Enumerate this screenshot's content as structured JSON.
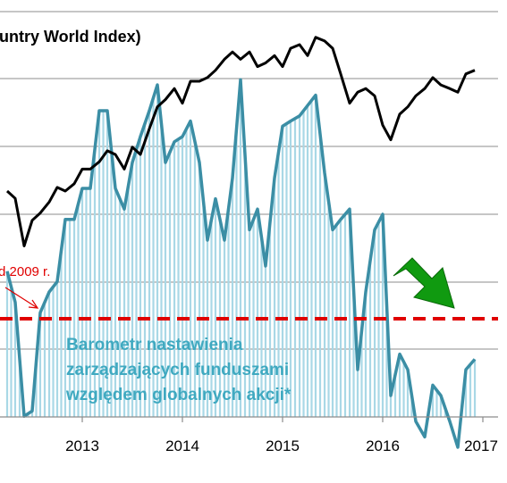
{
  "chart_data": {
    "type": "line",
    "title_fragment": "untry World Index)",
    "annotation": "d 2009 r.",
    "barometer_label_lines": [
      "Barometr nastawienia",
      "zarządzających  funduszami",
      "względem globalnych  akcji*"
    ],
    "x_ticks": [
      "2013",
      "2014",
      "2015",
      "2016",
      "2017"
    ],
    "index_series": {
      "t": [
        2012.25,
        2012.33,
        2012.42,
        2012.5,
        2012.58,
        2012.67,
        2012.75,
        2012.83,
        2012.92,
        2013.0,
        2013.08,
        2013.17,
        2013.25,
        2013.33,
        2013.42,
        2013.5,
        2013.58,
        2013.67,
        2013.75,
        2013.83,
        2013.92,
        2014.0,
        2014.08,
        2014.17,
        2014.25,
        2014.33,
        2014.42,
        2014.5,
        2014.58,
        2014.67,
        2014.75,
        2014.83,
        2014.92,
        2015.0,
        2015.08,
        2015.17,
        2015.25,
        2015.33,
        2015.42,
        2015.5,
        2015.58,
        2015.67,
        2015.75,
        2015.83,
        2015.92,
        2016.0,
        2016.08,
        2016.17,
        2016.25,
        2016.33,
        2016.42,
        2016.5,
        2016.58,
        2016.67,
        2016.75,
        2016.83,
        2016.92
      ],
      "values": [
        60,
        58,
        45,
        52,
        54,
        57,
        61,
        60,
        62,
        66,
        66,
        68,
        71,
        70,
        66,
        72,
        70,
        77,
        83,
        85,
        88,
        84,
        90,
        90,
        91,
        93,
        96,
        98,
        96,
        98,
        94,
        95,
        97,
        94,
        99,
        100,
        97,
        102,
        101,
        99,
        92,
        84,
        87,
        88,
        86,
        78,
        74,
        81,
        83,
        86,
        88,
        91,
        89,
        88,
        87,
        92,
        93
      ]
    },
    "barometer_series": {
      "t": [
        2012.25,
        2012.33,
        2012.42,
        2012.5,
        2012.58,
        2012.67,
        2012.75,
        2012.83,
        2012.92,
        2013.0,
        2013.08,
        2013.17,
        2013.25,
        2013.33,
        2013.42,
        2013.5,
        2013.58,
        2013.67,
        2013.75,
        2013.83,
        2013.92,
        2014.0,
        2014.08,
        2014.17,
        2014.25,
        2014.33,
        2014.42,
        2014.5,
        2014.58,
        2014.67,
        2014.75,
        2014.83,
        2014.92,
        2015.0,
        2015.08,
        2015.17,
        2015.25,
        2015.33,
        2015.42,
        2015.5,
        2015.58,
        2015.67,
        2015.75,
        2015.83,
        2015.92,
        2016.0,
        2016.08,
        2016.17,
        2016.25,
        2016.33,
        2016.42,
        2016.5,
        2016.58,
        2016.67,
        2016.75,
        2016.83,
        2016.92
      ],
      "values": [
        14,
        8,
        -14,
        -13,
        6,
        10,
        12,
        24,
        24,
        30,
        30,
        45,
        45,
        30,
        26,
        35,
        40,
        45,
        50,
        35,
        39,
        40,
        43,
        35,
        20,
        28,
        20,
        32,
        51,
        22,
        26,
        15,
        32,
        42,
        43,
        44,
        46,
        48,
        33,
        22,
        24,
        26,
        -5,
        10,
        22,
        25,
        -10,
        -2,
        -5,
        -15,
        -18,
        -8,
        -10,
        -15,
        -20,
        -5,
        -3
      ]
    },
    "barometer_threshold_label_value": 8,
    "colors": {
      "index_line": "#000000",
      "barometer_line": "#3b8ea5",
      "barometer_fill": "#a9d8e6",
      "threshold_line": "#e00000",
      "arrow_fill": "#109a10",
      "grid": "#8c8c8c"
    }
  }
}
